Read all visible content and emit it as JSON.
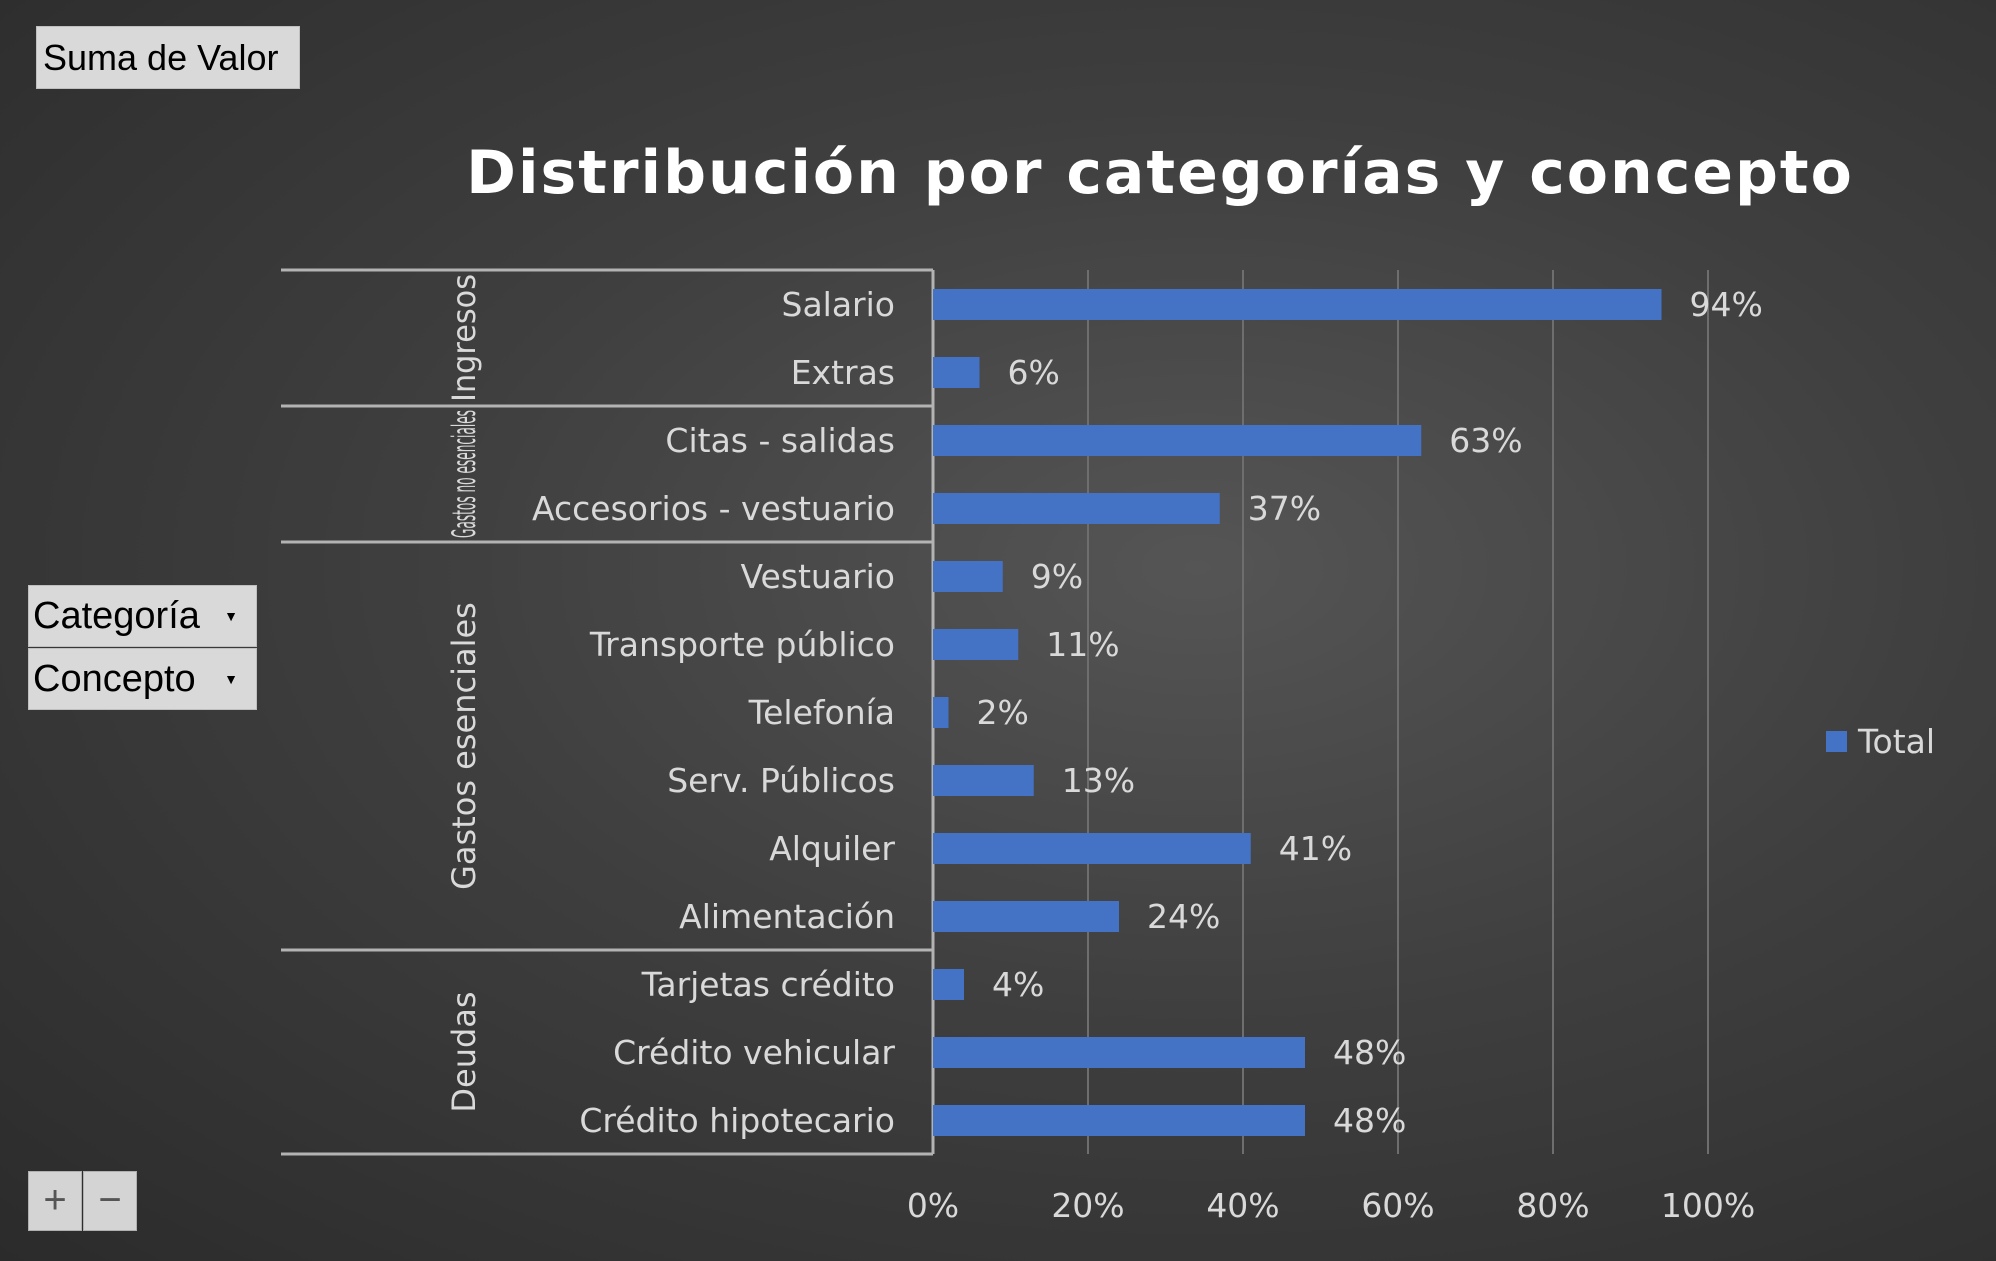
{
  "pivot": {
    "value_field": "Suma de Valor",
    "row_fields": [
      {
        "label": "Categoría",
        "icon": "dropdown-arrow-icon"
      },
      {
        "label": "Concepto",
        "icon": "dropdown-arrow-icon"
      }
    ],
    "zoom_in_label": "+",
    "zoom_out_label": "−"
  },
  "chart_data": {
    "type": "bar",
    "orientation": "horizontal",
    "title": "Distribución por categorías y concepto",
    "groups": [
      {
        "name": "Ingresos",
        "items": [
          {
            "label": "Salario",
            "value": 0.94,
            "data_label": "94%"
          },
          {
            "label": "Extras",
            "value": 0.06,
            "data_label": "6%"
          }
        ]
      },
      {
        "name": "Gastos no esenciales",
        "items": [
          {
            "label": "Citas - salidas",
            "value": 0.63,
            "data_label": "63%"
          },
          {
            "label": "Accesorios - vestuario",
            "value": 0.37,
            "data_label": "37%"
          }
        ]
      },
      {
        "name": "Gastos esenciales",
        "items": [
          {
            "label": "Vestuario",
            "value": 0.09,
            "data_label": "9%"
          },
          {
            "label": "Transporte público",
            "value": 0.11,
            "data_label": "11%"
          },
          {
            "label": "Telefonía",
            "value": 0.02,
            "data_label": "2%"
          },
          {
            "label": "Serv. Públicos",
            "value": 0.13,
            "data_label": "13%"
          },
          {
            "label": "Alquiler",
            "value": 0.41,
            "data_label": "41%"
          },
          {
            "label": "Alimentación",
            "value": 0.24,
            "data_label": "24%"
          }
        ]
      },
      {
        "name": "Deudas",
        "items": [
          {
            "label": "Tarjetas crédito",
            "value": 0.04,
            "data_label": "4%"
          },
          {
            "label": "Crédito vehicular",
            "value": 0.48,
            "data_label": "48%"
          },
          {
            "label": "Crédito hipotecario",
            "value": 0.48,
            "data_label": "48%"
          }
        ]
      }
    ],
    "x_ticks": [
      "0%",
      "20%",
      "40%",
      "60%",
      "80%",
      "100%"
    ],
    "xlim": [
      0,
      1
    ],
    "grid": true,
    "legend": {
      "entries": [
        "Total"
      ],
      "position": "right"
    },
    "colors": {
      "bar": "#4472c4",
      "text": "#d9d9d9",
      "grid": "#6e6e6e",
      "frame": "#b3b3b3"
    }
  }
}
